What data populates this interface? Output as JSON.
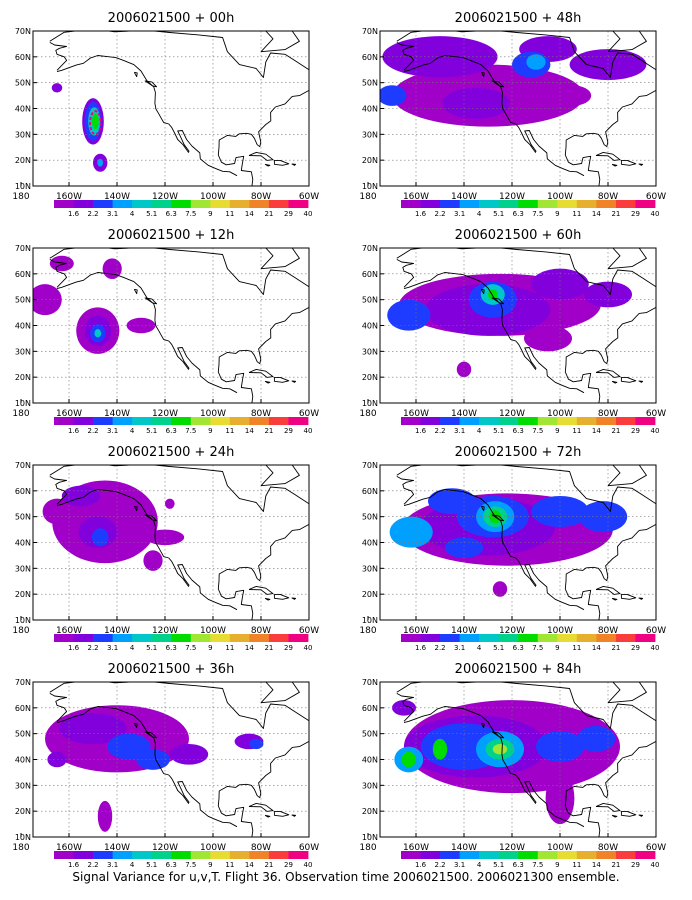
{
  "caption": "Signal Variance for u,v,T. Flight 36. Observation time 2006021500. 2006021300 ensemble.",
  "lon_ticks": [
    "180",
    "160W",
    "140W",
    "120W",
    "100W",
    "80W",
    "60W"
  ],
  "lat_ticks": [
    "10N",
    "20N",
    "30N",
    "40N",
    "50N",
    "60N",
    "70N"
  ],
  "extent": {
    "lon": [
      -175,
      -60
    ],
    "lat": [
      10,
      70
    ]
  },
  "colorbar": {
    "labels": [
      "1.6",
      "2.2",
      "3.1",
      "4",
      "5.1",
      "6.3",
      "7.5",
      "9",
      "11",
      "14",
      "21",
      "29",
      "40"
    ],
    "colors": [
      "#a000c8",
      "#8200dc",
      "#1e3cff",
      "#00a0ff",
      "#00c8c8",
      "#00d28c",
      "#00dc00",
      "#a0e632",
      "#e6dc32",
      "#e6af2d",
      "#f08228",
      "#fa3c3c",
      "#f00082"
    ]
  },
  "panels": [
    {
      "title": "2006021500 + 00h"
    },
    {
      "title": "2006021500 + 48h"
    },
    {
      "title": "2006021500 + 12h"
    },
    {
      "title": "2006021500 + 60h"
    },
    {
      "title": "2006021500 + 24h"
    },
    {
      "title": "2006021500 + 72h"
    },
    {
      "title": "2006021500 + 36h"
    },
    {
      "title": "2006021500 + 84h"
    }
  ]
}
